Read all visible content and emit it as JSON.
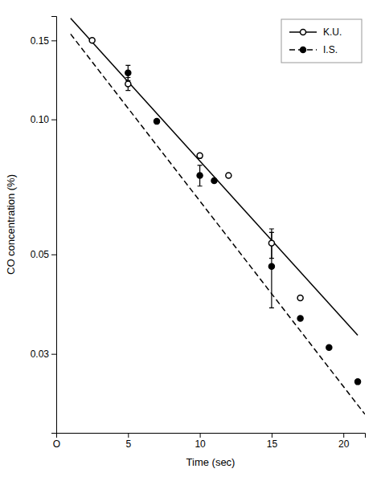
{
  "chart_data": {
    "type": "scatter",
    "xlabel": "Time  (sec)",
    "ylabel": "CO concentration (%)",
    "log": "y",
    "legend": "upper right",
    "xlim": [
      0,
      21.5
    ],
    "ylim": [
      0.02,
      0.17
    ],
    "xticks": [
      {
        "value": 0,
        "label": "O"
      },
      5,
      10,
      15,
      20
    ],
    "yticks": [
      0.03,
      0.05,
      {
        "value": 0.1,
        "label": "0.10"
      },
      0.15
    ],
    "series": [
      {
        "name": "K.U.",
        "color": "#000000",
        "marker": "open-circle",
        "line_style": "solid",
        "x": [
          2.5,
          5.0,
          10.0,
          12.0,
          15.0,
          17.0
        ],
        "values": [
          0.15,
          0.12,
          0.083,
          0.075,
          0.053,
          0.04
        ],
        "errors": [
          0,
          0.004,
          0,
          0,
          0.004,
          0
        ],
        "fit_x": [
          1.0,
          21.0
        ],
        "fit_y": [
          0.168,
          0.033
        ]
      },
      {
        "name": "I.S.",
        "color": "#000000",
        "marker": "filled-circle",
        "line_style": "dashed",
        "x": [
          5.0,
          7.0,
          10.0,
          11.0,
          15.0,
          17.0,
          19.0,
          21.0
        ],
        "values": [
          0.127,
          0.099,
          0.075,
          0.073,
          0.047,
          0.036,
          0.031,
          0.026
        ],
        "errors": [
          0.005,
          0,
          0.004,
          0,
          0.009,
          0,
          0,
          0
        ],
        "fit_x": [
          1.0,
          21.5
        ],
        "fit_y": [
          0.155,
          0.022
        ]
      }
    ]
  }
}
